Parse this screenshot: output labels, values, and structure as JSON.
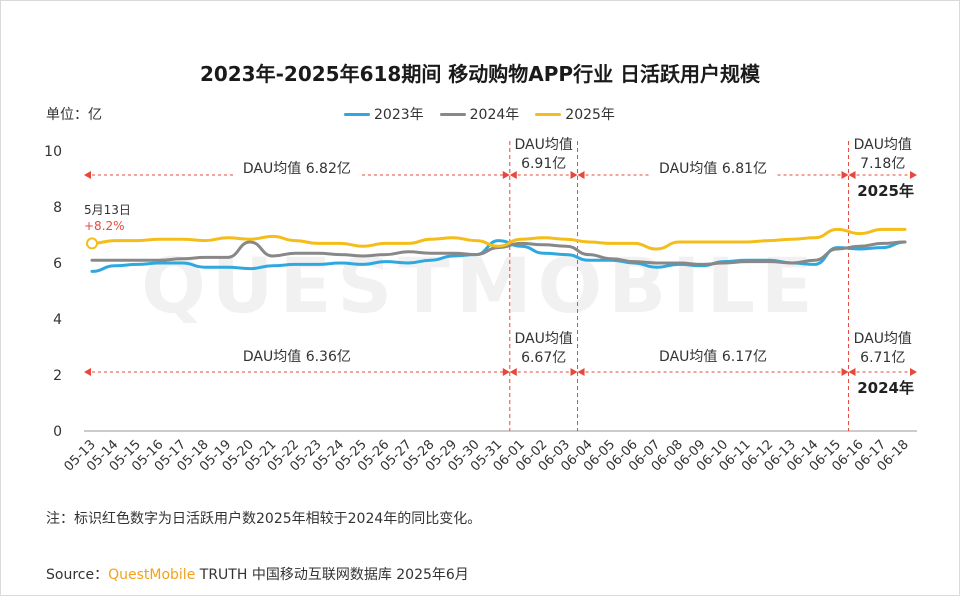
{
  "header": {
    "title": "2023年-2025年618期间 移动购物APP行业 日活跃用户规模",
    "unit": "单位：亿"
  },
  "legend": [
    {
      "name": "2023年",
      "color": "#2ea8df"
    },
    {
      "name": "2024年",
      "color": "#888888"
    },
    {
      "name": "2025年",
      "color": "#f5bd18"
    }
  ],
  "annotations": {
    "top_periods": [
      {
        "text": "DAU均值  6.82亿"
      },
      {
        "text_line1": "DAU均值",
        "text_line2": "6.91亿"
      },
      {
        "text": "DAU均值  6.81亿"
      },
      {
        "text_line1": "DAU均值",
        "text_line2": "7.18亿"
      }
    ],
    "bottom_periods": [
      {
        "text": "DAU均值  6.36亿"
      },
      {
        "text_line1": "DAU均值",
        "text_line2": "6.67亿"
      },
      {
        "text": "DAU均值  6.17亿"
      },
      {
        "text_line1": "DAU均值",
        "text_line2": "6.71亿"
      }
    ],
    "year_top": "2025年",
    "year_bottom": "2024年",
    "point_date": "5月13日",
    "point_change": "+8.2%"
  },
  "chart_data": {
    "type": "line",
    "x": [
      "05-13",
      "05-14",
      "05-15",
      "05-16",
      "05-17",
      "05-18",
      "05-19",
      "05-20",
      "05-21",
      "05-22",
      "05-23",
      "05-24",
      "05-25",
      "05-26",
      "05-27",
      "05-28",
      "05-29",
      "05-30",
      "05-31",
      "06-01",
      "06-02",
      "06-03",
      "06-04",
      "06-05",
      "06-06",
      "06-07",
      "06-08",
      "06-09",
      "06-10",
      "06-11",
      "06-12",
      "06-13",
      "06-14",
      "06-15",
      "06-16",
      "06-17",
      "06-18"
    ],
    "ylim": [
      0,
      10
    ],
    "yticks": [
      0,
      2,
      4,
      6,
      8,
      10
    ],
    "series": [
      {
        "name": "2023年",
        "color": "#2ea8df",
        "values": [
          5.7,
          5.9,
          5.95,
          6.0,
          6.0,
          5.85,
          5.85,
          5.8,
          5.9,
          5.95,
          5.95,
          6.0,
          5.95,
          6.05,
          6.0,
          6.1,
          6.25,
          6.3,
          6.8,
          6.6,
          6.35,
          6.3,
          6.1,
          6.1,
          6.0,
          5.85,
          5.95,
          5.9,
          6.05,
          6.1,
          6.1,
          6.0,
          5.95,
          6.55,
          6.5,
          6.55,
          6.75
        ]
      },
      {
        "name": "2024年",
        "color": "#888888",
        "values": [
          6.1,
          6.1,
          6.1,
          6.1,
          6.15,
          6.2,
          6.2,
          6.75,
          6.25,
          6.35,
          6.35,
          6.3,
          6.25,
          6.3,
          6.4,
          6.35,
          6.35,
          6.3,
          6.55,
          6.7,
          6.65,
          6.6,
          6.3,
          6.15,
          6.05,
          6.0,
          6.0,
          5.95,
          6.0,
          6.05,
          6.05,
          6.0,
          6.1,
          6.5,
          6.6,
          6.7,
          6.75
        ]
      },
      {
        "name": "2025年",
        "color": "#f5bd18",
        "values": [
          6.7,
          6.8,
          6.8,
          6.85,
          6.85,
          6.8,
          6.9,
          6.85,
          6.95,
          6.8,
          6.7,
          6.7,
          6.6,
          6.7,
          6.7,
          6.85,
          6.9,
          6.8,
          6.6,
          6.85,
          6.9,
          6.85,
          6.75,
          6.7,
          6.7,
          6.5,
          6.75,
          6.75,
          6.75,
          6.75,
          6.8,
          6.85,
          6.9,
          7.2,
          7.05,
          7.2,
          7.2
        ]
      }
    ],
    "period_boundaries": [
      "05-31",
      "06-03",
      "06-15"
    ]
  },
  "footer": {
    "note": "注：标识红色数字为日活跃用户数2025年相较于2024年的同比变化。",
    "source_label": "Source：",
    "source_brand": "QuestMobile",
    "source_rest": " TRUTH 中国移动互联网数据库 2025年6月"
  }
}
